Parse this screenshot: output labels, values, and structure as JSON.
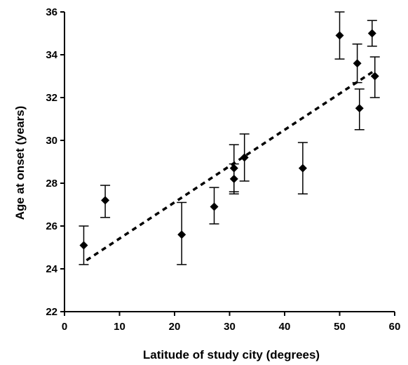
{
  "chart_data": {
    "type": "scatter",
    "title": "",
    "xlabel": "Latitude of study city (degrees)",
    "ylabel": "Age at onset (years)",
    "xlim": [
      0,
      60
    ],
    "ylim": [
      22,
      36
    ],
    "x_ticks": [
      "0",
      "10",
      "20",
      "30",
      "40",
      "50",
      "60"
    ],
    "y_ticks": [
      "22",
      "24",
      "26",
      "28",
      "30",
      "32",
      "34",
      "36"
    ],
    "grid": false,
    "legend": "none",
    "marker": "diamond",
    "marker_color": "#000000",
    "points": [
      {
        "x": 3.5,
        "y": 25.1,
        "err_low": 24.2,
        "err_high": 26.0
      },
      {
        "x": 7.4,
        "y": 27.2,
        "err_low": 26.4,
        "err_high": 27.9
      },
      {
        "x": 21.3,
        "y": 25.6,
        "err_low": 24.2,
        "err_high": 27.1
      },
      {
        "x": 27.2,
        "y": 26.9,
        "err_low": 26.1,
        "err_high": 27.8
      },
      {
        "x": 30.8,
        "y": 28.7,
        "err_low": 27.6,
        "err_high": 29.8
      },
      {
        "x": 30.8,
        "y": 28.2,
        "err_low": 27.5,
        "err_high": 28.9
      },
      {
        "x": 32.7,
        "y": 29.2,
        "err_low": 28.1,
        "err_high": 30.3
      },
      {
        "x": 43.3,
        "y": 28.7,
        "err_low": 27.5,
        "err_high": 29.9
      },
      {
        "x": 50.0,
        "y": 34.9,
        "err_low": 33.8,
        "err_high": 36.0
      },
      {
        "x": 53.2,
        "y": 33.6,
        "err_low": 32.7,
        "err_high": 34.5
      },
      {
        "x": 53.6,
        "y": 31.5,
        "err_low": 30.5,
        "err_high": 32.4
      },
      {
        "x": 55.9,
        "y": 35.0,
        "err_low": 34.4,
        "err_high": 35.6
      },
      {
        "x": 56.4,
        "y": 33.0,
        "err_low": 32.0,
        "err_high": 33.9
      }
    ],
    "trendline": {
      "style": "dotted",
      "x": [
        4,
        56
      ],
      "y": [
        24.4,
        33.2
      ]
    }
  }
}
